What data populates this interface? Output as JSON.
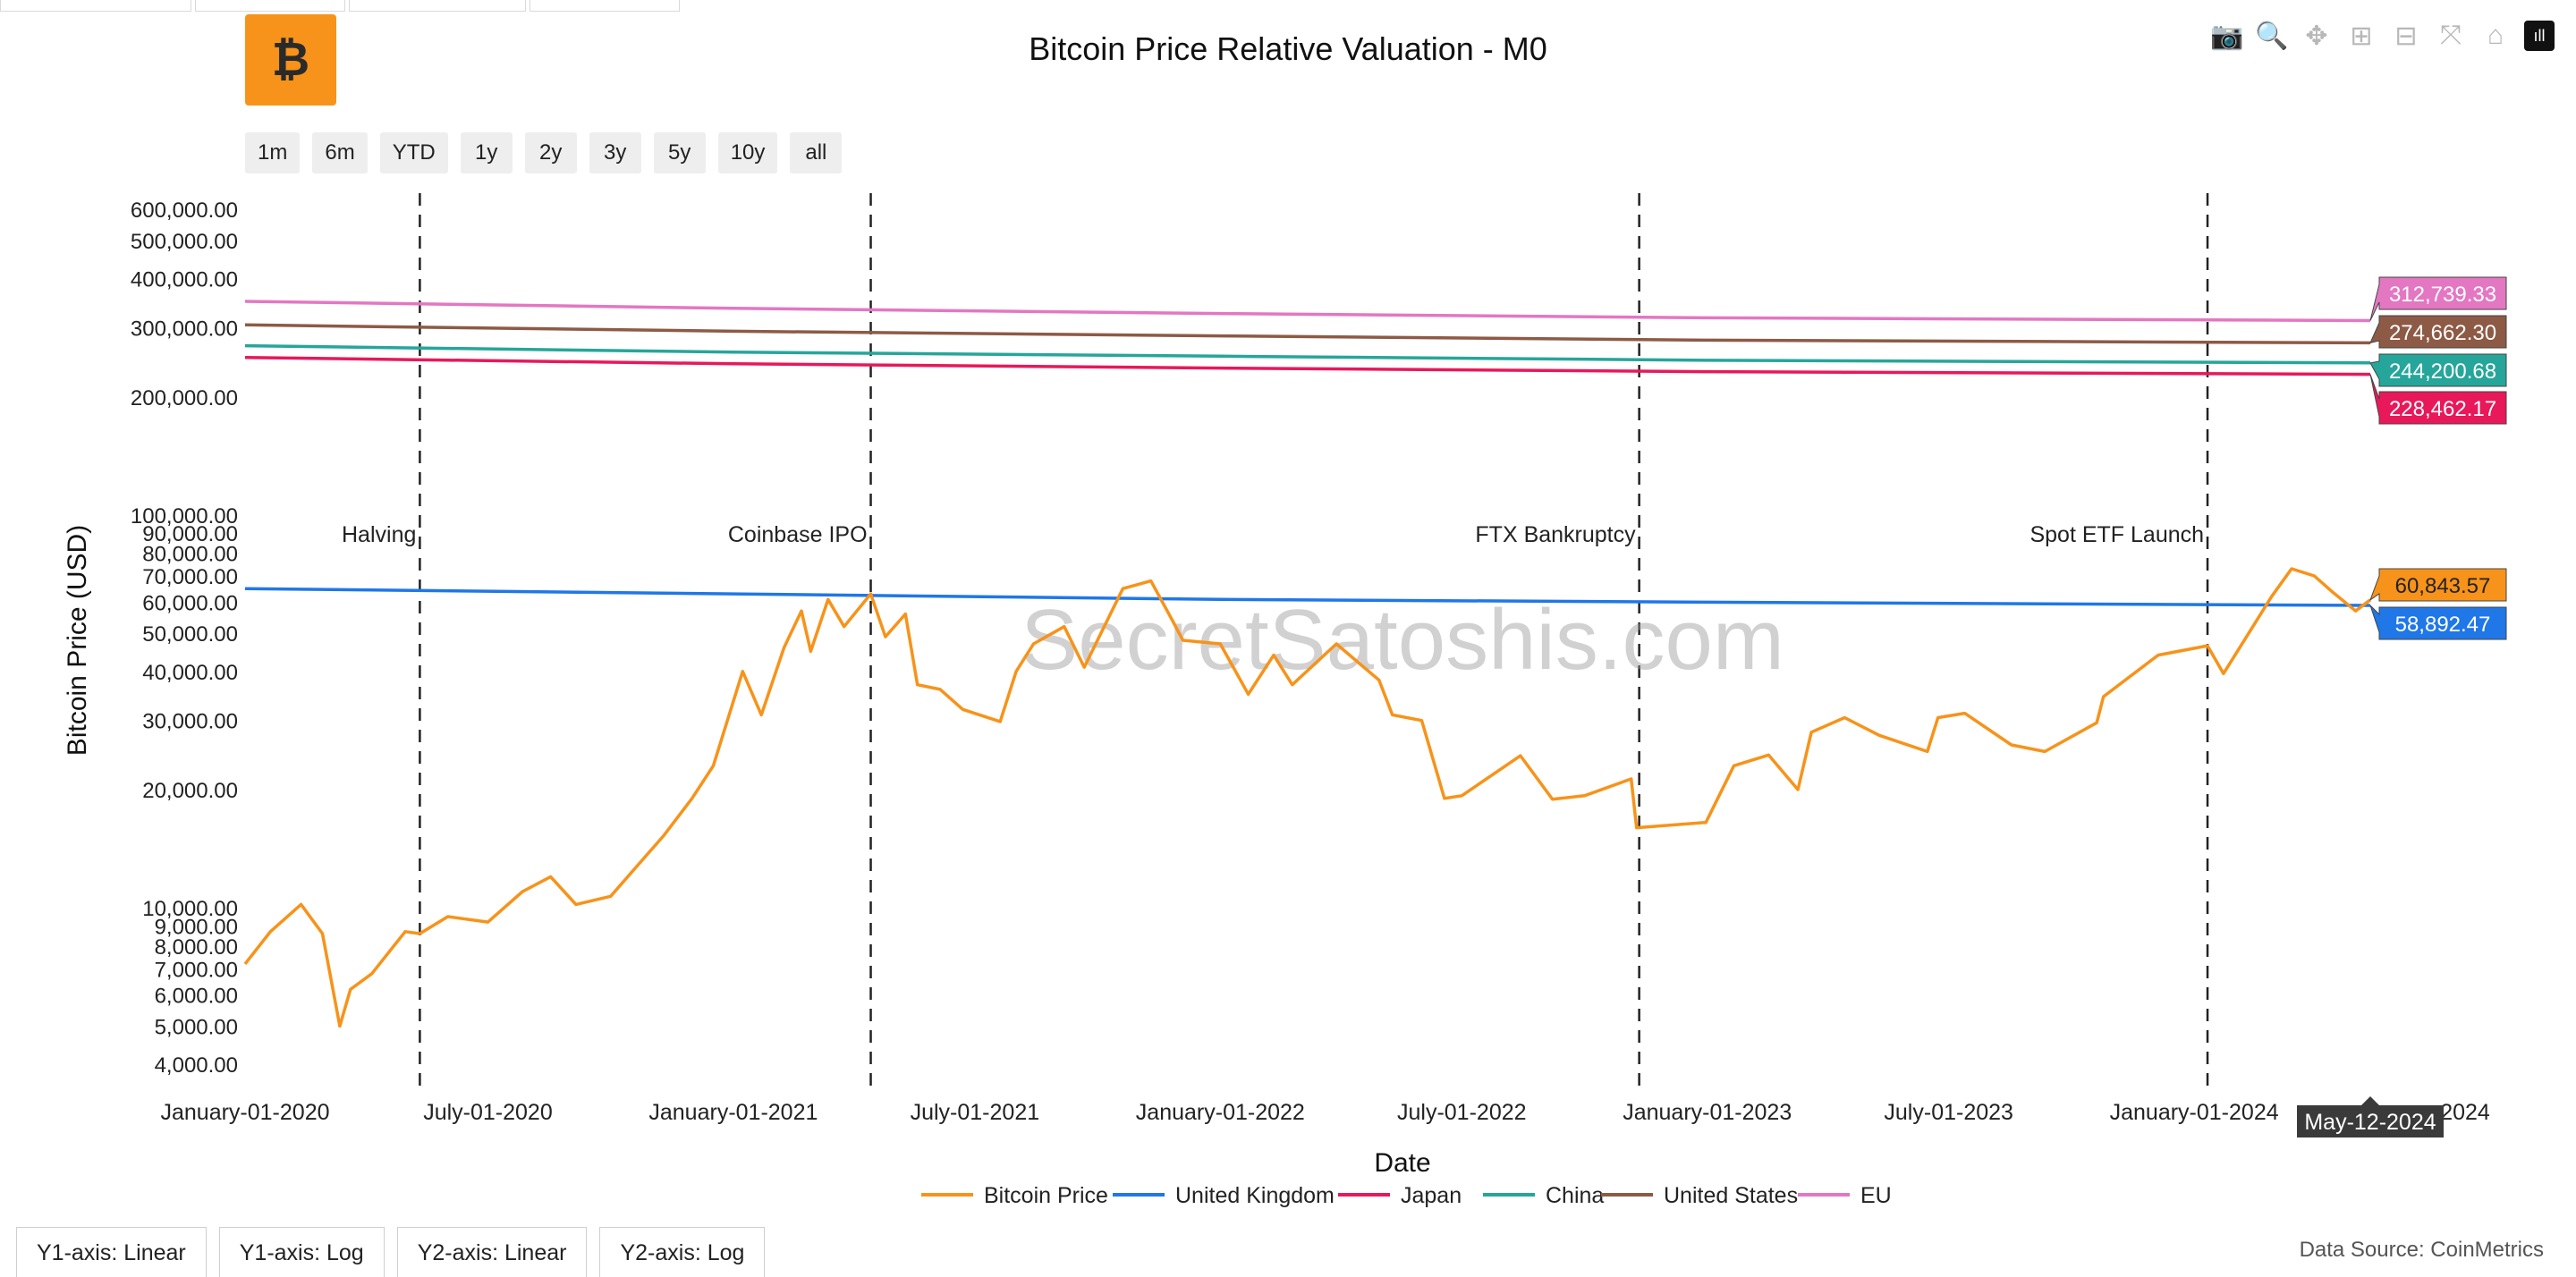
{
  "title": "Bitcoin Price Relative Valuation - M0",
  "logo_glyph": "₿",
  "modebar": [
    {
      "name": "camera-icon",
      "glyph": "📷"
    },
    {
      "name": "zoom-icon",
      "glyph": "🔍"
    },
    {
      "name": "pan-icon",
      "glyph": "✥"
    },
    {
      "name": "zoom-in-icon",
      "glyph": "⊞"
    },
    {
      "name": "zoom-out-icon",
      "glyph": "⊟"
    },
    {
      "name": "autoscale-icon",
      "glyph": "⤧"
    },
    {
      "name": "home-icon",
      "glyph": "⌂"
    },
    {
      "name": "plotly-logo-icon",
      "glyph": "ıll"
    }
  ],
  "range_buttons": [
    "1m",
    "6m",
    "YTD",
    "1y",
    "2y",
    "3y",
    "5y",
    "10y",
    "all"
  ],
  "axis_buttons": [
    "Y1-axis: Linear",
    "Y1-axis: Log",
    "Y2-axis: Linear",
    "Y2-axis: Log"
  ],
  "data_source": "Data Source: CoinMetrics",
  "hover_date": "May-12-2024",
  "chart_data": {
    "type": "line",
    "xlabel": "Date",
    "ylabel": "Bitcoin Price (USD)",
    "x_ticks": [
      "January-01-2020",
      "July-01-2020",
      "January-01-2021",
      "July-01-2021",
      "January-01-2022",
      "July-01-2022",
      "January-01-2023",
      "July-01-2023",
      "January-01-2024"
    ],
    "x_tick_last_fragment": "2024",
    "y2_ticks": [
      "600,000.00",
      "500,000.00",
      "400,000.00",
      "300,000.00",
      "200,000.00"
    ],
    "y1_ticks": [
      "100,000.00",
      "90,000.00",
      "80,000.00",
      "70,000.00",
      "60,000.00",
      "50,000.00",
      "40,000.00",
      "30,000.00",
      "20,000.00",
      "10,000.00",
      "9,000.00",
      "8,000.00",
      "7,000.00",
      "6,000.00",
      "5,000.00",
      "4,000.00"
    ],
    "events": [
      {
        "label": "Halving",
        "date": "2020-05-11"
      },
      {
        "label": "Coinbase IPO",
        "date": "2021-04-14"
      },
      {
        "label": "FTX Bankruptcy",
        "date": "2022-11-11"
      },
      {
        "label": "Spot ETF Launch",
        "date": "2024-01-11"
      }
    ],
    "series": [
      {
        "name": "Bitcoin Price",
        "color": "#f7931a",
        "axis": "y1",
        "last_label": "60,843.57",
        "points": [
          [
            "2020-01-01",
            7200
          ],
          [
            "2020-01-20",
            8700
          ],
          [
            "2020-02-12",
            10200
          ],
          [
            "2020-02-28",
            8600
          ],
          [
            "2020-03-12",
            5000
          ],
          [
            "2020-03-20",
            6200
          ],
          [
            "2020-04-05",
            6800
          ],
          [
            "2020-04-30",
            8700
          ],
          [
            "2020-05-11",
            8600
          ],
          [
            "2020-06-01",
            9500
          ],
          [
            "2020-07-01",
            9200
          ],
          [
            "2020-07-27",
            11000
          ],
          [
            "2020-08-17",
            12000
          ],
          [
            "2020-09-05",
            10200
          ],
          [
            "2020-10-01",
            10700
          ],
          [
            "2020-10-21",
            12800
          ],
          [
            "2020-11-10",
            15300
          ],
          [
            "2020-12-01",
            19000
          ],
          [
            "2020-12-17",
            23000
          ],
          [
            "2021-01-08",
            40000
          ],
          [
            "2021-01-22",
            31000
          ],
          [
            "2021-02-08",
            46000
          ],
          [
            "2021-02-21",
            57000
          ],
          [
            "2021-02-28",
            45000
          ],
          [
            "2021-03-13",
            61000
          ],
          [
            "2021-03-25",
            52000
          ],
          [
            "2021-04-14",
            63000
          ],
          [
            "2021-04-25",
            49000
          ],
          [
            "2021-05-10",
            56000
          ],
          [
            "2021-05-19",
            37000
          ],
          [
            "2021-06-05",
            36000
          ],
          [
            "2021-06-22",
            32000
          ],
          [
            "2021-07-20",
            29800
          ],
          [
            "2021-08-01",
            40000
          ],
          [
            "2021-08-14",
            47000
          ],
          [
            "2021-09-06",
            52000
          ],
          [
            "2021-09-21",
            41000
          ],
          [
            "2021-10-20",
            65000
          ],
          [
            "2021-11-10",
            68000
          ],
          [
            "2021-11-26",
            54000
          ],
          [
            "2021-12-04",
            48000
          ],
          [
            "2022-01-01",
            47000
          ],
          [
            "2022-01-22",
            35000
          ],
          [
            "2022-02-10",
            44000
          ],
          [
            "2022-02-24",
            37000
          ],
          [
            "2022-03-29",
            47000
          ],
          [
            "2022-04-30",
            38000
          ],
          [
            "2022-05-10",
            31000
          ],
          [
            "2022-06-01",
            30000
          ],
          [
            "2022-06-18",
            19000
          ],
          [
            "2022-07-01",
            19300
          ],
          [
            "2022-08-14",
            24400
          ],
          [
            "2022-09-07",
            18900
          ],
          [
            "2022-10-01",
            19300
          ],
          [
            "2022-11-05",
            21300
          ],
          [
            "2022-11-09",
            16000
          ],
          [
            "2022-12-31",
            16500
          ],
          [
            "2023-01-21",
            23000
          ],
          [
            "2023-02-16",
            24500
          ],
          [
            "2023-03-10",
            20000
          ],
          [
            "2023-03-20",
            28000
          ],
          [
            "2023-04-14",
            30500
          ],
          [
            "2023-05-10",
            27500
          ],
          [
            "2023-06-15",
            25000
          ],
          [
            "2023-06-23",
            30500
          ],
          [
            "2023-07-13",
            31300
          ],
          [
            "2023-08-17",
            26000
          ],
          [
            "2023-09-11",
            25000
          ],
          [
            "2023-10-20",
            29600
          ],
          [
            "2023-10-25",
            34500
          ],
          [
            "2023-12-05",
            44000
          ],
          [
            "2024-01-11",
            46500
          ],
          [
            "2024-01-23",
            39500
          ],
          [
            "2024-02-14",
            52000
          ],
          [
            "2024-02-28",
            62000
          ],
          [
            "2024-03-14",
            73000
          ],
          [
            "2024-03-31",
            70000
          ],
          [
            "2024-04-13",
            64000
          ],
          [
            "2024-05-01",
            57000
          ],
          [
            "2024-05-12",
            60843.57
          ]
        ]
      },
      {
        "name": "United Kingdom",
        "color": "#1f77e8",
        "axis": "y1",
        "last_label": "58,892.47",
        "points": [
          [
            "2020-01-01",
            65000
          ],
          [
            "2021-01-01",
            63000
          ],
          [
            "2022-01-01",
            61000
          ],
          [
            "2023-01-01",
            60000
          ],
          [
            "2024-05-12",
            58892.47
          ]
        ]
      },
      {
        "name": "Japan",
        "color": "#e8185a",
        "axis": "y2",
        "last_label": "228,462.17",
        "points": [
          [
            "2020-01-01",
            252000
          ],
          [
            "2021-01-01",
            243000
          ],
          [
            "2022-01-01",
            237000
          ],
          [
            "2023-01-01",
            232000
          ],
          [
            "2024-05-12",
            228462.17
          ]
        ]
      },
      {
        "name": "China",
        "color": "#26a69a",
        "axis": "y2",
        "last_label": "244,200.68",
        "points": [
          [
            "2020-01-01",
            270000
          ],
          [
            "2021-01-01",
            260000
          ],
          [
            "2022-01-01",
            254000
          ],
          [
            "2023-01-01",
            248000
          ],
          [
            "2024-05-12",
            244200.68
          ]
        ]
      },
      {
        "name": "United States",
        "color": "#8d5a45",
        "axis": "y2",
        "last_label": "274,662.30",
        "points": [
          [
            "2020-01-01",
            305000
          ],
          [
            "2021-01-01",
            294000
          ],
          [
            "2022-01-01",
            286000
          ],
          [
            "2023-01-01",
            279000
          ],
          [
            "2024-05-12",
            274662.3
          ]
        ]
      },
      {
        "name": "EU",
        "color": "#e377c2",
        "axis": "y2",
        "last_label": "312,739.33",
        "points": [
          [
            "2020-01-01",
            350000
          ],
          [
            "2021-01-01",
            336000
          ],
          [
            "2022-01-01",
            326000
          ],
          [
            "2023-01-01",
            318000
          ],
          [
            "2024-05-12",
            312739.33
          ]
        ]
      }
    ]
  }
}
